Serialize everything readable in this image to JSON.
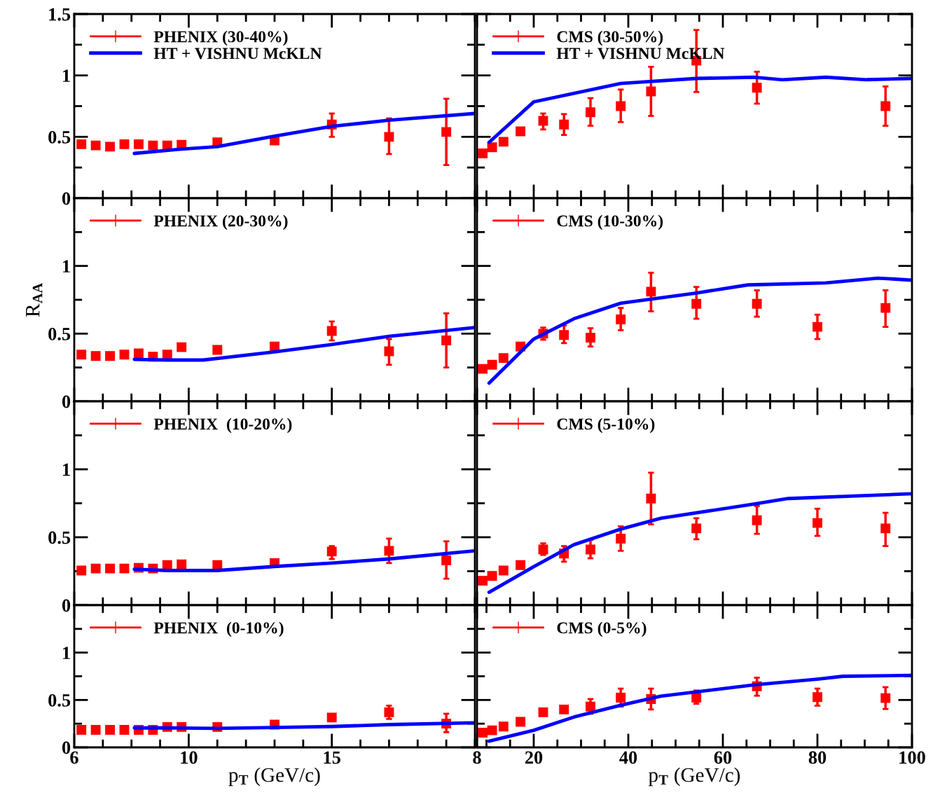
{
  "chart_data": [
    {
      "type": "scatter",
      "marker": "square",
      "legend": "top left",
      "tick_labels": "y",
      "xlim": [
        6,
        20
      ],
      "xticks": [
        6,
        {
          "value": 7,
          "label": null
        },
        {
          "value": 8,
          "label": null
        },
        {
          "value": 9,
          "label": null
        },
        10,
        {
          "value": 11,
          "label": null
        },
        {
          "value": 12,
          "label": null
        },
        {
          "value": 13,
          "label": null
        },
        {
          "value": 14,
          "label": null
        },
        15,
        {
          "value": 16,
          "label": null
        },
        {
          "value": 17,
          "label": null
        },
        {
          "value": 18,
          "label": null
        },
        {
          "value": 19,
          "label": null
        },
        {
          "value": 20,
          "label": null
        }
      ],
      "ylim": [
        0,
        1.5
      ],
      "yticks": [
        0,
        {
          "value": 0.25,
          "label": null
        },
        0.5,
        {
          "value": 0.75,
          "label": null
        },
        1,
        {
          "value": 1.25,
          "label": null
        },
        1.5
      ],
      "series": [
        {
          "name": "PHENIX (30-40%)",
          "color": "#ff0000",
          "x": [
            6.25,
            6.75,
            7.25,
            7.75,
            8.25,
            8.75,
            9.25,
            9.75,
            11,
            13,
            15,
            17,
            19
          ],
          "values": [
            0.44,
            0.43,
            0.42,
            0.44,
            0.44,
            0.43,
            0.43,
            0.435,
            0.455,
            0.47,
            0.6,
            0.5,
            0.54
          ],
          "errors": [
            null,
            null,
            null,
            null,
            null,
            null,
            null,
            null,
            null,
            null,
            [
              0.5,
              0.69
            ],
            [
              0.36,
              0.65
            ],
            [
              0.27,
              0.81
            ]
          ]
        },
        {
          "name": "HT + VISHNU McKLN",
          "type": "line",
          "marker": "none",
          "color": "#0000ff",
          "x": [
            8.1,
            9.75,
            11,
            13,
            15,
            17,
            20
          ],
          "values": [
            0.365,
            0.4,
            0.42,
            0.505,
            0.585,
            0.635,
            0.69
          ]
        }
      ]
    },
    {
      "type": "scatter",
      "marker": "square",
      "legend": "top left",
      "tick_labels": false,
      "xlim": [
        8,
        100
      ],
      "xticks": [
        8,
        {
          "value": 10,
          "label": null
        },
        {
          "value": 15,
          "label": null
        },
        20,
        {
          "value": 25,
          "label": null
        },
        {
          "value": 30,
          "label": null
        },
        {
          "value": 35,
          "label": null
        },
        40,
        {
          "value": 45,
          "label": null
        },
        {
          "value": 50,
          "label": null
        },
        {
          "value": 55,
          "label": null
        },
        60,
        {
          "value": 65,
          "label": null
        },
        {
          "value": 70,
          "label": null
        },
        {
          "value": 75,
          "label": null
        },
        80,
        {
          "value": 85,
          "label": null
        },
        {
          "value": 90,
          "label": null
        },
        {
          "value": 95,
          "label": null
        },
        100
      ],
      "ylim": [
        0,
        1.5
      ],
      "yticks": [
        0,
        {
          "value": 0.25,
          "label": null
        },
        0.5,
        {
          "value": 0.75,
          "label": null
        },
        1,
        {
          "value": 1.25,
          "label": null
        },
        1.5
      ],
      "series": [
        {
          "name": "CMS (30-50%)",
          "color": "#ff0000",
          "x": [
            9.2,
            11.2,
            13.6,
            17.2,
            22,
            26.4,
            32,
            38.4,
            44.8,
            54.4,
            67.2,
            94.4
          ],
          "values": [
            0.365,
            0.415,
            0.46,
            0.545,
            0.63,
            0.6,
            0.7,
            0.75,
            0.87,
            1.12,
            0.9,
            0.75
          ],
          "errors": [
            null,
            null,
            null,
            null,
            [
              0.56,
              0.69
            ],
            [
              0.515,
              0.685
            ],
            [
              0.59,
              0.815
            ],
            [
              0.62,
              0.885
            ],
            [
              0.67,
              1.07
            ],
            [
              0.865,
              1.37
            ],
            [
              0.77,
              1.03
            ],
            [
              0.59,
              0.91
            ]
          ]
        },
        {
          "name": "HT + VISHNU McKLN",
          "type": "line",
          "marker": "none",
          "color": "#0000ff",
          "x": [
            10.55,
            20,
            38.4,
            54.4,
            66.8,
            72.6,
            81.8,
            90.4,
            100
          ],
          "values": [
            0.455,
            0.785,
            0.935,
            0.975,
            0.985,
            0.965,
            0.985,
            0.965,
            0.975
          ]
        }
      ]
    },
    {
      "type": "scatter",
      "marker": "square",
      "legend": "top left",
      "tick_labels": "y",
      "ylabel": "R$_{AA}$",
      "xlim": [
        6,
        20
      ],
      "xticks": [
        6,
        {
          "value": 7,
          "label": null
        },
        {
          "value": 8,
          "label": null
        },
        {
          "value": 9,
          "label": null
        },
        10,
        {
          "value": 11,
          "label": null
        },
        {
          "value": 12,
          "label": null
        },
        {
          "value": 13,
          "label": null
        },
        {
          "value": 14,
          "label": null
        },
        15,
        {
          "value": 16,
          "label": null
        },
        {
          "value": 17,
          "label": null
        },
        {
          "value": 18,
          "label": null
        },
        {
          "value": 19,
          "label": null
        },
        {
          "value": 20,
          "label": null
        }
      ],
      "ylim": [
        0,
        1.5
      ],
      "yticks": [
        0,
        {
          "value": 0.25,
          "label": null
        },
        0.5,
        {
          "value": 0.75,
          "label": null
        },
        1,
        {
          "value": 1.25,
          "label": null
        }
      ],
      "series": [
        {
          "name": "PHENIX (20-30%)",
          "color": "#ff0000",
          "x": [
            6.25,
            6.75,
            7.25,
            7.75,
            8.25,
            8.75,
            9.25,
            9.75,
            11,
            13,
            15,
            17,
            19
          ],
          "values": [
            0.345,
            0.335,
            0.335,
            0.345,
            0.355,
            0.33,
            0.345,
            0.4,
            0.38,
            0.405,
            0.52,
            0.37,
            0.45
          ],
          "errors": [
            null,
            null,
            null,
            null,
            null,
            null,
            null,
            null,
            null,
            null,
            [
              0.45,
              0.59
            ],
            [
              0.27,
              0.46
            ],
            [
              0.25,
              0.65
            ]
          ]
        },
        {
          "type": "line",
          "marker": "none",
          "color": "#0000ff",
          "x": [
            8.1,
            9.25,
            10.5,
            13,
            15,
            17,
            20
          ],
          "values": [
            0.31,
            0.305,
            0.305,
            0.365,
            0.42,
            0.48,
            0.545
          ]
        }
      ]
    },
    {
      "type": "scatter",
      "marker": "square",
      "legend": "top left",
      "tick_labels": false,
      "xlim": [
        8,
        100
      ],
      "xticks": [
        8,
        {
          "value": 10,
          "label": null
        },
        {
          "value": 15,
          "label": null
        },
        20,
        {
          "value": 25,
          "label": null
        },
        {
          "value": 30,
          "label": null
        },
        {
          "value": 35,
          "label": null
        },
        40,
        {
          "value": 45,
          "label": null
        },
        {
          "value": 50,
          "label": null
        },
        {
          "value": 55,
          "label": null
        },
        60,
        {
          "value": 65,
          "label": null
        },
        {
          "value": 70,
          "label": null
        },
        {
          "value": 75,
          "label": null
        },
        80,
        {
          "value": 85,
          "label": null
        },
        {
          "value": 90,
          "label": null
        },
        {
          "value": 95,
          "label": null
        },
        100
      ],
      "ylim": [
        0,
        1.5
      ],
      "yticks": [
        0,
        {
          "value": 0.25,
          "label": null
        },
        0.5,
        {
          "value": 0.75,
          "label": null
        },
        1,
        {
          "value": 1.25,
          "label": null
        }
      ],
      "series": [
        {
          "name": "CMS (10-30%)",
          "color": "#ff0000",
          "x": [
            9.2,
            11.2,
            13.6,
            17.2,
            22,
            26.4,
            32,
            38.4,
            44.8,
            54.4,
            67.2,
            80,
            94.4
          ],
          "values": [
            0.24,
            0.27,
            0.32,
            0.405,
            0.5,
            0.49,
            0.47,
            0.605,
            0.81,
            0.72,
            0.72,
            0.55,
            0.69
          ],
          "errors": [
            null,
            null,
            null,
            null,
            [
              0.455,
              0.545
            ],
            [
              0.43,
              0.56
            ],
            [
              0.405,
              0.54
            ],
            [
              0.525,
              0.69
            ],
            [
              0.665,
              0.95
            ],
            [
              0.61,
              0.845
            ],
            [
              0.625,
              0.82
            ],
            [
              0.46,
              0.64
            ],
            [
              0.55,
              0.82
            ]
          ]
        },
        {
          "type": "line",
          "marker": "none",
          "color": "#0000ff",
          "x": [
            10.55,
            20,
            28.5,
            38.4,
            54.4,
            65.3,
            81.8,
            92.8,
            100
          ],
          "values": [
            0.135,
            0.46,
            0.61,
            0.725,
            0.8,
            0.86,
            0.875,
            0.91,
            0.895
          ]
        }
      ]
    },
    {
      "type": "scatter",
      "marker": "square",
      "legend": "top left",
      "tick_labels": "y",
      "xlim": [
        6,
        20
      ],
      "xticks": [
        6,
        {
          "value": 7,
          "label": null
        },
        {
          "value": 8,
          "label": null
        },
        {
          "value": 9,
          "label": null
        },
        10,
        {
          "value": 11,
          "label": null
        },
        {
          "value": 12,
          "label": null
        },
        {
          "value": 13,
          "label": null
        },
        {
          "value": 14,
          "label": null
        },
        15,
        {
          "value": 16,
          "label": null
        },
        {
          "value": 17,
          "label": null
        },
        {
          "value": 18,
          "label": null
        },
        {
          "value": 19,
          "label": null
        },
        {
          "value": 20,
          "label": null
        }
      ],
      "ylim": [
        0,
        1.5
      ],
      "yticks": [
        0,
        {
          "value": 0.25,
          "label": null
        },
        0.5,
        {
          "value": 0.75,
          "label": null
        },
        1,
        {
          "value": 1.25,
          "label": null
        }
      ],
      "series": [
        {
          "name": "PHENIX  (10-20%)",
          "color": "#ff0000",
          "x": [
            6.25,
            6.75,
            7.25,
            7.75,
            8.25,
            8.75,
            9.25,
            9.75,
            11,
            13,
            15,
            17,
            19
          ],
          "values": [
            0.255,
            0.27,
            0.27,
            0.27,
            0.275,
            0.27,
            0.295,
            0.3,
            0.295,
            0.31,
            0.395,
            0.4,
            0.33
          ],
          "errors": [
            null,
            null,
            null,
            null,
            null,
            null,
            null,
            null,
            null,
            null,
            [
              0.34,
              0.435
            ],
            [
              0.31,
              0.49
            ],
            [
              0.195,
              0.47
            ]
          ]
        },
        {
          "type": "line",
          "marker": "none",
          "color": "#0000ff",
          "x": [
            8.1,
            9.25,
            11,
            13,
            15,
            17,
            20
          ],
          "values": [
            0.265,
            0.255,
            0.255,
            0.285,
            0.31,
            0.34,
            0.4
          ]
        }
      ]
    },
    {
      "type": "scatter",
      "marker": "square",
      "legend": "top left",
      "tick_labels": false,
      "xlim": [
        8,
        100
      ],
      "xticks": [
        8,
        {
          "value": 10,
          "label": null
        },
        {
          "value": 15,
          "label": null
        },
        20,
        {
          "value": 25,
          "label": null
        },
        {
          "value": 30,
          "label": null
        },
        {
          "value": 35,
          "label": null
        },
        40,
        {
          "value": 45,
          "label": null
        },
        {
          "value": 50,
          "label": null
        },
        {
          "value": 55,
          "label": null
        },
        60,
        {
          "value": 65,
          "label": null
        },
        {
          "value": 70,
          "label": null
        },
        {
          "value": 75,
          "label": null
        },
        80,
        {
          "value": 85,
          "label": null
        },
        {
          "value": 90,
          "label": null
        },
        {
          "value": 95,
          "label": null
        },
        100
      ],
      "ylim": [
        0,
        1.5
      ],
      "yticks": [
        0,
        {
          "value": 0.25,
          "label": null
        },
        0.5,
        {
          "value": 0.75,
          "label": null
        },
        1,
        {
          "value": 1.25,
          "label": null
        }
      ],
      "series": [
        {
          "name": "CMS (5-10%)",
          "color": "#ff0000",
          "x": [
            9.2,
            11.2,
            13.6,
            17.2,
            22,
            26.4,
            32,
            38.4,
            44.8,
            54.4,
            67.2,
            80,
            94.4
          ],
          "values": [
            0.18,
            0.215,
            0.255,
            0.295,
            0.41,
            0.38,
            0.41,
            0.49,
            0.785,
            0.565,
            0.625,
            0.605,
            0.565
          ],
          "errors": [
            null,
            null,
            null,
            null,
            [
              0.37,
              0.455
            ],
            [
              0.32,
              0.435
            ],
            [
              0.345,
              0.48
            ],
            [
              0.4,
              0.58
            ],
            [
              0.595,
              0.975
            ],
            [
              0.485,
              0.64
            ],
            [
              0.525,
              0.73
            ],
            [
              0.51,
              0.71
            ],
            [
              0.435,
              0.68
            ]
          ]
        },
        {
          "type": "line",
          "marker": "none",
          "color": "#0000ff",
          "x": [
            10.55,
            20.1,
            28.5,
            38.4,
            46.9,
            66.8,
            73.8,
            100
          ],
          "values": [
            0.095,
            0.285,
            0.445,
            0.56,
            0.64,
            0.745,
            0.785,
            0.82
          ]
        }
      ]
    },
    {
      "type": "scatter",
      "marker": "square",
      "legend": "top left",
      "xlabel": "p$_{T}$ (GeV/c)",
      "xlim": [
        6,
        20
      ],
      "xticks": [
        6,
        {
          "value": 7,
          "label": null
        },
        {
          "value": 8,
          "label": null
        },
        {
          "value": 9,
          "label": null
        },
        10,
        {
          "value": 11,
          "label": null
        },
        {
          "value": 12,
          "label": null
        },
        {
          "value": 13,
          "label": null
        },
        {
          "value": 14,
          "label": null
        },
        15,
        {
          "value": 16,
          "label": null
        },
        {
          "value": 17,
          "label": null
        },
        {
          "value": 18,
          "label": null
        },
        {
          "value": 19,
          "label": null
        },
        {
          "value": 20,
          "label": null
        }
      ],
      "ylim": [
        0,
        1.5
      ],
      "yticks": [
        0,
        {
          "value": 0.25,
          "label": null
        },
        0.5,
        {
          "value": 0.75,
          "label": null
        },
        1,
        {
          "value": 1.25,
          "label": null
        }
      ],
      "series": [
        {
          "name": "PHENIX  (0-10%)",
          "color": "#ff0000",
          "x": [
            6.25,
            6.75,
            7.25,
            7.75,
            8.25,
            8.75,
            9.25,
            9.75,
            11,
            13,
            15,
            17,
            19
          ],
          "values": [
            0.185,
            0.185,
            0.185,
            0.185,
            0.185,
            0.185,
            0.215,
            0.215,
            0.215,
            0.24,
            0.315,
            0.37,
            0.25
          ],
          "errors": [
            null,
            null,
            null,
            null,
            null,
            null,
            null,
            null,
            null,
            null,
            null,
            [
              0.3,
              0.44
            ],
            [
              0.16,
              0.355
            ]
          ]
        },
        {
          "type": "line",
          "marker": "none",
          "color": "#0000ff",
          "x": [
            8.1,
            9.25,
            11,
            13,
            15,
            17,
            20
          ],
          "values": [
            0.205,
            0.205,
            0.2,
            0.21,
            0.22,
            0.24,
            0.26
          ]
        }
      ]
    },
    {
      "type": "scatter",
      "marker": "square",
      "legend": "top left",
      "tick_labels": "x",
      "xlabel": "p$_{T}$ (GeV/c)",
      "xlim": [
        8,
        100
      ],
      "xticks": [
        8,
        {
          "value": 10,
          "label": null
        },
        {
          "value": 15,
          "label": null
        },
        20,
        {
          "value": 25,
          "label": null
        },
        {
          "value": 30,
          "label": null
        },
        {
          "value": 35,
          "label": null
        },
        40,
        {
          "value": 45,
          "label": null
        },
        {
          "value": 50,
          "label": null
        },
        {
          "value": 55,
          "label": null
        },
        60,
        {
          "value": 65,
          "label": null
        },
        {
          "value": 70,
          "label": null
        },
        {
          "value": 75,
          "label": null
        },
        80,
        {
          "value": 85,
          "label": null
        },
        {
          "value": 90,
          "label": null
        },
        {
          "value": 95,
          "label": null
        },
        100
      ],
      "ylim": [
        0,
        1.5
      ],
      "yticks": [
        0,
        {
          "value": 0.25,
          "label": null
        },
        0.5,
        {
          "value": 0.75,
          "label": null
        },
        1,
        {
          "value": 1.25,
          "label": null
        }
      ],
      "series": [
        {
          "name": "CMS (0-5%)",
          "color": "#ff0000",
          "x": [
            9.2,
            11.2,
            13.6,
            17.2,
            22,
            26.4,
            32,
            38.4,
            44.8,
            54.4,
            67.2,
            80,
            94.4
          ],
          "values": [
            0.155,
            0.18,
            0.22,
            0.27,
            0.37,
            0.4,
            0.43,
            0.525,
            0.51,
            0.525,
            0.645,
            0.53,
            0.52
          ],
          "errors": [
            null,
            null,
            null,
            null,
            null,
            null,
            [
              0.355,
              0.51
            ],
            [
              0.43,
              0.62
            ],
            [
              0.4,
              0.62
            ],
            [
              0.46,
              0.6
            ],
            [
              0.545,
              0.735
            ],
            [
              0.44,
              0.62
            ],
            [
              0.405,
              0.635
            ]
          ]
        },
        {
          "type": "line",
          "marker": "none",
          "color": "#0000ff",
          "x": [
            10.55,
            20,
            28.5,
            38.4,
            46.9,
            66.8,
            80,
            85.4,
            100
          ],
          "values": [
            0.065,
            0.18,
            0.32,
            0.445,
            0.54,
            0.66,
            0.72,
            0.75,
            0.76
          ]
        }
      ]
    }
  ]
}
